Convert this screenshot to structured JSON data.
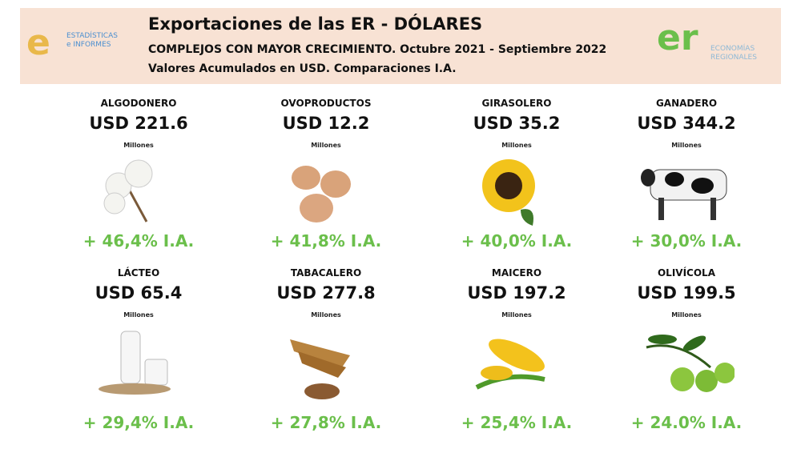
{
  "header": {
    "title": "Exportaciones de las ER - DÓLARES",
    "subtitle": "COMPLEJOS CON MAYOR CRECIMIENTO. Octubre 2021 - Septiembre 2022",
    "note": "Valores Acumulados en USD. Comparaciones I.A.",
    "left_logo": {
      "mark": "e",
      "text_1": "ESTADÍSTICAS",
      "text_2": "e INFORMES"
    },
    "right_logo": {
      "mark": "er",
      "text_1": "ECONOMÍAS",
      "text_2": "REGIONALES"
    }
  },
  "items": [
    {
      "name": "ALGODONERO",
      "amount": "USD 221.6",
      "unit": "Millones",
      "growth": "+ 46,4% I.A."
    },
    {
      "name": "OVOPRODUCTOS",
      "amount": "USD 12.2",
      "unit": "Millones",
      "growth": "+ 41,8% I.A."
    },
    {
      "name": "GIRASOLERO",
      "amount": "USD 35.2",
      "unit": "Millones",
      "growth": "+ 40,0% I.A."
    },
    {
      "name": "GANADERO",
      "amount": "USD 344.2",
      "unit": "Millones",
      "growth": "+ 30,0% I.A."
    },
    {
      "name": "LÁCTEO",
      "amount": "USD 65.4",
      "unit": "Millones",
      "growth": "+ 29,4% I.A."
    },
    {
      "name": "TABACALERO",
      "amount": "USD 277.8",
      "unit": "Millones",
      "growth": "+ 27,8% I.A."
    },
    {
      "name": "MAICERO",
      "amount": "USD 197.2",
      "unit": "Millones",
      "growth": "+ 25,4% I.A."
    },
    {
      "name": "OLIVÍCOLA",
      "amount": "USD 199.5",
      "unit": "Millones",
      "growth": "+ 24.0% I.A."
    }
  ]
}
